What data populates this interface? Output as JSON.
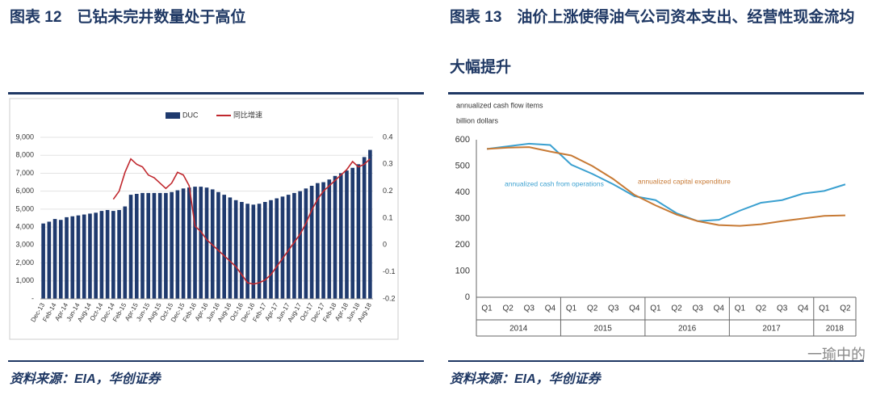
{
  "chart_data": [
    {
      "type": "bar",
      "title": "图表 12　已钻未完井数量处于高位",
      "source": "资料来源：EIA，华创证券",
      "categories": [
        "Dec-13",
        null,
        "Feb-14",
        null,
        "Apr-14",
        null,
        "Jun-14",
        null,
        "Aug-14",
        null,
        "Oct-14",
        null,
        "Dec-14",
        null,
        "Feb-15",
        null,
        "Apr-15",
        null,
        "Jun-15",
        null,
        "Aug-15",
        null,
        "Oct-15",
        null,
        "Dec-15",
        null,
        "Feb-16",
        null,
        "Apr-16",
        null,
        "Jun-16",
        null,
        "Aug-16",
        null,
        "Oct-16",
        null,
        "Dec-16",
        null,
        "Feb-17",
        null,
        "Apr-17",
        null,
        "Jun-17",
        null,
        "Aug-17",
        null,
        "Oct-17",
        null,
        "Dec-17",
        null,
        "Feb-18",
        null,
        "Apr-18",
        null,
        "Jun-18",
        null,
        "Aug-18"
      ],
      "series": [
        {
          "name": "DUC",
          "color": "#1f3a6e",
          "values": [
            4200,
            4300,
            4450,
            4400,
            4550,
            4600,
            4650,
            4700,
            4750,
            4800,
            4900,
            4950,
            4900,
            4950,
            5150,
            5800,
            5850,
            5900,
            5900,
            5900,
            5900,
            5900,
            5950,
            6050,
            6150,
            6200,
            6250,
            6250,
            6200,
            6100,
            5950,
            5800,
            5650,
            5500,
            5400,
            5300,
            5250,
            5300,
            5400,
            5500,
            5600,
            5700,
            5800,
            5900,
            6000,
            6150,
            6300,
            6450,
            6500,
            6650,
            6850,
            7000,
            7150,
            7300,
            7500,
            7900,
            8300
          ]
        },
        {
          "name": "同比增速",
          "color": "#c0282e",
          "axis": "y2",
          "values": [
            null,
            null,
            null,
            null,
            null,
            null,
            null,
            null,
            null,
            null,
            null,
            null,
            0.17,
            0.2,
            0.27,
            0.32,
            0.3,
            0.29,
            0.26,
            0.25,
            0.23,
            0.21,
            0.23,
            0.27,
            0.26,
            0.22,
            0.07,
            0.05,
            0.02,
            0,
            -0.02,
            -0.04,
            -0.06,
            -0.08,
            -0.11,
            -0.14,
            -0.145,
            -0.14,
            -0.13,
            -0.11,
            -0.08,
            -0.05,
            -0.02,
            0.01,
            0.04,
            0.08,
            0.13,
            0.17,
            0.2,
            0.22,
            0.24,
            0.26,
            0.28,
            0.31,
            0.29,
            0.3,
            0.32
          ]
        }
      ],
      "ylim": [
        0,
        9000
      ],
      "yticks": [
        {
          "value": 0,
          "label": "-"
        },
        {
          "value": 1000,
          "label": "1,000"
        },
        {
          "value": 2000,
          "label": "2,000"
        },
        {
          "value": 3000,
          "label": "3,000"
        },
        {
          "value": 4000,
          "label": "4,000"
        },
        {
          "value": 5000,
          "label": "5,000"
        },
        {
          "value": 6000,
          "label": "6,000"
        },
        {
          "value": 7000,
          "label": "7,000"
        },
        {
          "value": 8000,
          "label": "8,000"
        },
        {
          "value": 9000,
          "label": "9,000"
        }
      ],
      "y2lim": [
        -0.2,
        0.4
      ],
      "y2ticks": [
        -0.2,
        -0.1,
        0,
        0.1,
        0.2,
        0.3,
        0.4
      ],
      "grid": true,
      "legend": "top"
    },
    {
      "type": "line",
      "title": "图表 13　油价上涨使得油气公司资本支出、经营性现金流均大幅提升",
      "source": "资料来源：EIA，华创证券",
      "subtitle": "annualized cash flow items",
      "y_label": "billion dollars",
      "categories": [
        "Q1",
        "Q2",
        "Q3",
        "Q4",
        "Q1",
        "Q2",
        "Q3",
        "Q4",
        "Q1",
        "Q2",
        "Q3",
        "Q4",
        "Q1",
        "Q2",
        "Q3",
        "Q4",
        "Q1",
        "Q2"
      ],
      "groups": [
        "2014",
        "2015",
        "2016",
        "2017",
        "2018"
      ],
      "series": [
        {
          "name": "annualized cash from operations",
          "color": "#3aa0d0",
          "values": [
            565,
            575,
            585,
            580,
            505,
            470,
            430,
            385,
            370,
            320,
            290,
            295,
            330,
            360,
            370,
            395,
            405,
            430
          ]
        },
        {
          "name": "annualized capital expenditure",
          "color": "#c77a35",
          "values": [
            565,
            570,
            572,
            555,
            540,
            500,
            450,
            390,
            350,
            315,
            290,
            275,
            272,
            278,
            290,
            300,
            310,
            312
          ]
        }
      ],
      "ylim": [
        0,
        600
      ],
      "yticks": [
        0,
        100,
        200,
        300,
        400,
        500,
        600
      ],
      "grid": false
    }
  ],
  "watermark": "一瑜中的"
}
